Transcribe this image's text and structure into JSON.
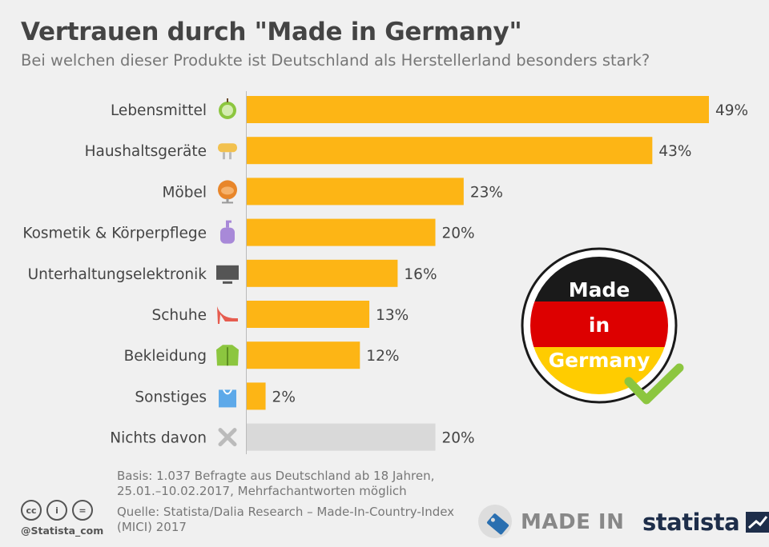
{
  "title": "Vertrauen durch \"Made in Germany\"",
  "subtitle": "Bei welchen dieser Produkte ist Deutschland als Herstellerland besonders stark?",
  "chart_data": {
    "type": "bar",
    "orientation": "horizontal",
    "categories": [
      "Lebensmittel",
      "Haushaltsgeräte",
      "Möbel",
      "Kosmetik & Körperpflege",
      "Unterhaltungselektronik",
      "Schuhe",
      "Bekleidung",
      "Sonstiges",
      "Nichts davon"
    ],
    "values": [
      49,
      43,
      23,
      20,
      16,
      13,
      12,
      2,
      20
    ],
    "value_labels": [
      "49%",
      "43%",
      "23%",
      "20%",
      "16%",
      "13%",
      "12%",
      "2%",
      "20%"
    ],
    "icons": [
      "apple-icon",
      "hand-mixer-icon",
      "armchair-icon",
      "lotion-bottle-icon",
      "tv-icon",
      "high-heel-icon",
      "jacket-icon",
      "shopping-bag-icon",
      "cross-icon"
    ],
    "bar_colors": [
      "#fdb515",
      "#fdb515",
      "#fdb515",
      "#fdb515",
      "#fdb515",
      "#fdb515",
      "#fdb515",
      "#fdb515",
      "#d9d9d9"
    ],
    "xlim": [
      0,
      49
    ],
    "grid": false,
    "legend": "none"
  },
  "badge": {
    "line1": "Made",
    "line2": "in",
    "line3": "Germany",
    "colors": {
      "black": "#1a1a1a",
      "red": "#dd0000",
      "gold": "#ffcc00",
      "check": "#8cc63f"
    }
  },
  "footer": {
    "basis": "Basis: 1.037 Befragte aus Deutschland ab 18 Jahren, 25.01.–10.02.2017, Mehrfachantworten möglich",
    "source": "Quelle: Statista/Dalia Research – Made-In-Country-Index (MICI) 2017",
    "handle": "@Statista_com",
    "cc_icons": [
      "cc-icon",
      "by-icon",
      "nd-icon"
    ],
    "cc_glyphs": [
      "cc",
      "i",
      "="
    ],
    "madein_logo": "MADE IN",
    "statista_logo": "statista"
  }
}
